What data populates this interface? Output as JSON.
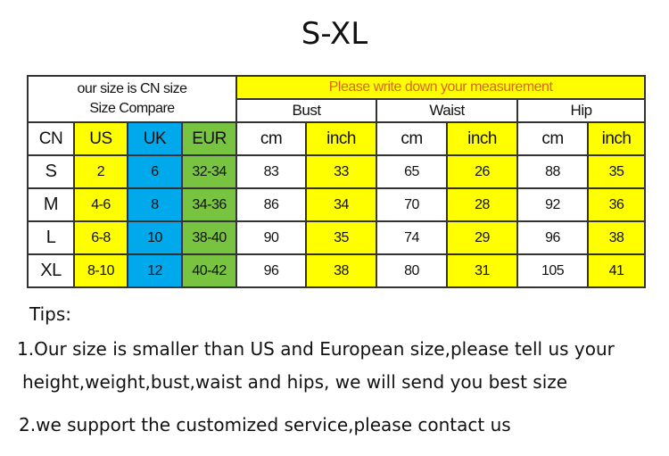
{
  "title": "S-XL",
  "table": {
    "compare_header": [
      "our size is CN size",
      "Size Compare"
    ],
    "measurement_header": "Please write down your  measurement",
    "groups": [
      "Bust",
      "Waist",
      "Hip"
    ],
    "columns": [
      "CN",
      "US",
      "UK",
      "EUR",
      "cm",
      "inch",
      "cm",
      "inch",
      "cm",
      "inch"
    ],
    "rows": [
      [
        "S",
        "2",
        "6",
        "32-34",
        "83",
        "33",
        "65",
        "26",
        "88",
        "35"
      ],
      [
        "M",
        "4-6",
        "8",
        "34-36",
        "86",
        "34",
        "70",
        "28",
        "92",
        "36"
      ],
      [
        "L",
        "6-8",
        "10",
        "38-40",
        "90",
        "35",
        "74",
        "29",
        "96",
        "38"
      ],
      [
        "XL",
        "8-10",
        "12",
        "40-42",
        "96",
        "38",
        "80",
        "31",
        "105",
        "41"
      ]
    ],
    "colors": {
      "yellow": "#ffff00",
      "blue": "#00a8ec",
      "green": "#78c440",
      "warning_text": "#d9661f"
    }
  },
  "tips": {
    "heading": "Tips:",
    "lines": [
      "1.Our size is smaller than US and European size,please tell us your",
      "height,weight,bust,waist and hips, we will send you best size",
      "2.we support the customized service,please contact us"
    ]
  }
}
